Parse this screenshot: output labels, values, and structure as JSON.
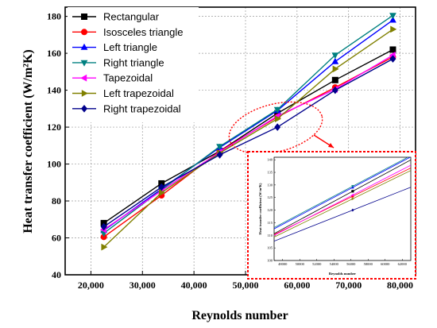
{
  "chart_data": {
    "type": "line",
    "xlabel": "Reynolds number",
    "ylabel": "Heat transfer coefficient (W/m²K)",
    "xlim": [
      15000,
      83000
    ],
    "ylim": [
      40,
      185
    ],
    "xticks": [
      "20,000",
      "30,000",
      "40,000",
      "50,000",
      "60,000",
      "70,000",
      "80,000"
    ],
    "yticks": [
      "40",
      "60",
      "80",
      "100",
      "120",
      "140",
      "160",
      "180"
    ],
    "grid": true,
    "legend_position": "top-left",
    "x": [
      22500,
      33700,
      45000,
      56200,
      67400,
      78600
    ],
    "series": [
      {
        "name": "Rectangular",
        "color": "#000000",
        "marker": "square",
        "values": [
          68,
          89.5,
          107,
          127.5,
          145.5,
          162
        ]
      },
      {
        "name": "Isosceles triangle",
        "color": "#ff0000",
        "marker": "circle",
        "values": [
          60.5,
          83,
          107,
          125.5,
          141.5,
          158
        ]
      },
      {
        "name": "Left triangle",
        "color": "#0000ff",
        "marker": "triangle-up",
        "values": [
          64,
          86.5,
          109,
          129,
          155.5,
          178
        ]
      },
      {
        "name": "Right triangle",
        "color": "#008080",
        "marker": "triangle-down",
        "values": [
          62.5,
          86,
          109.5,
          129.5,
          159,
          180.5
        ]
      },
      {
        "name": "Tapezoidal",
        "color": "#ff00ff",
        "marker": "triangle-left",
        "values": [
          64.5,
          85.5,
          106.5,
          126,
          140.5,
          159
        ]
      },
      {
        "name": "Left trapezoidal",
        "color": "#808000",
        "marker": "triangle-right",
        "values": [
          55,
          84.5,
          106,
          124.5,
          151.5,
          173
        ]
      },
      {
        "name": "Right trapezoidal",
        "color": "#00008b",
        "marker": "diamond",
        "values": [
          66,
          87.5,
          105,
          120,
          140,
          157
        ]
      }
    ],
    "inset": {
      "xlabel": "Reynolds number",
      "ylabel": "Heat transfer coefficient (W/m²K)",
      "xticks": [
        "48000",
        "50000",
        "52000",
        "54000",
        "56000",
        "58000",
        "60000",
        "62000"
      ],
      "yticks": [
        "100",
        "105",
        "110",
        "115",
        "120",
        "125",
        "130",
        "135",
        "140"
      ],
      "xlim": [
        47000,
        63000
      ],
      "ylim": [
        100,
        141
      ]
    },
    "colors": {
      "highlight": "#ff0000"
    }
  }
}
